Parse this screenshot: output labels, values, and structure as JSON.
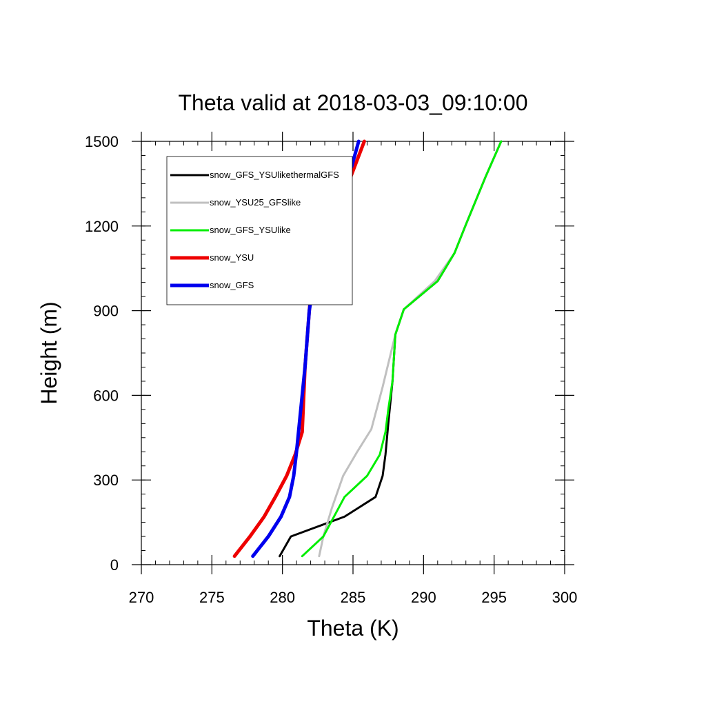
{
  "chart_data": {
    "type": "line",
    "title": "Theta valid at 2018-03-03_09:10:00",
    "xlabel": "Theta (K)",
    "ylabel": "Height (m)",
    "xlim": [
      270,
      300
    ],
    "ylim": [
      0,
      1500
    ],
    "xticks": [
      "270",
      "275",
      "280",
      "285",
      "290",
      "295",
      "300"
    ],
    "yticks": [
      "0",
      "300",
      "600",
      "900",
      "1200",
      "1500"
    ],
    "grid": false,
    "legend_position": "top-left",
    "series": [
      {
        "name": "snow_GFS_YSUlikethermalGFS",
        "color": "#000000",
        "x": [
          279.8,
          280.6,
          284.4,
          286.6,
          287.1,
          287.3,
          287.5,
          287.8,
          288.0,
          288.6,
          291.0,
          292.2,
          293.0,
          294.4,
          295.5
        ],
        "y": [
          30,
          100,
          170,
          240,
          315,
          390,
          500,
          650,
          815,
          905,
          1005,
          1105,
          1205,
          1375,
          1500
        ]
      },
      {
        "name": "snow_YSU25_GFSlike",
        "color": "#c0c0c0",
        "x": [
          282.6,
          282.9,
          283.5,
          284.3,
          285.3,
          286.3,
          287.1,
          288.0,
          288.6,
          290.8,
          292.2,
          293.0,
          294.4,
          295.5
        ],
        "y": [
          30,
          100,
          200,
          315,
          400,
          480,
          630,
          815,
          905,
          1005,
          1105,
          1205,
          1375,
          1500
        ]
      },
      {
        "name": "snow_GFS_YSUlike",
        "color": "#00ee00",
        "x": [
          281.4,
          282.9,
          284.4,
          286.0,
          286.9,
          287.3,
          287.5,
          287.8,
          288.0,
          288.6,
          291.0,
          292.2,
          293.0,
          294.4,
          295.5
        ],
        "y": [
          30,
          100,
          240,
          315,
          390,
          470,
          550,
          650,
          815,
          905,
          1005,
          1105,
          1205,
          1375,
          1500
        ]
      },
      {
        "name": "snow_YSU",
        "color": "#ee0000",
        "x": [
          276.6,
          277.7,
          278.7,
          279.5,
          280.3,
          280.9,
          281.4,
          281.6,
          281.9,
          282.1,
          282.5,
          283.3,
          284.5,
          285.8
        ],
        "y": [
          30,
          100,
          170,
          240,
          315,
          390,
          470,
          700,
          900,
          1000,
          1100,
          1200,
          1330,
          1500
        ]
      },
      {
        "name": "snow_GFS",
        "color": "#0000ee",
        "x": [
          277.9,
          279.0,
          279.9,
          280.5,
          280.8,
          281.0,
          281.2,
          281.4,
          281.6,
          281.9,
          282.2,
          282.6,
          283.3,
          284.9,
          285.4
        ],
        "y": [
          30,
          100,
          170,
          240,
          315,
          400,
          500,
          600,
          700,
          900,
          1000,
          1100,
          1300,
          1410,
          1500
        ]
      }
    ]
  }
}
